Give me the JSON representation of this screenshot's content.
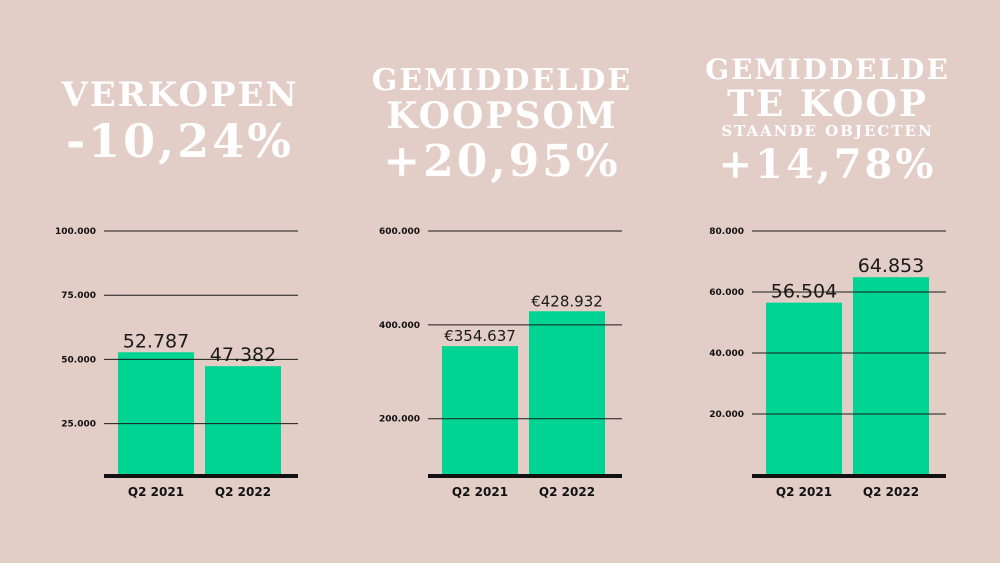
{
  "colors": {
    "background": "#e3cdc7",
    "bar": "#00d492",
    "text": "#ffffff",
    "axis": "#111111"
  },
  "headlines": [
    {
      "lines": [
        "VERKOPEN",
        "-10,24%"
      ]
    },
    {
      "lines": [
        "GEMIDDELDE",
        "KOOPSOM",
        "+20,95%"
      ]
    },
    {
      "lines": [
        "GEMIDDELDE",
        "TE KOOP",
        "STAANDE OBJECTEN",
        "+14,78%"
      ]
    }
  ],
  "chart_data": [
    {
      "type": "bar",
      "categories": [
        "Q2 2021",
        "Q2 2022"
      ],
      "values": [
        52787,
        47382
      ],
      "data_labels": [
        "52.787",
        "47.382"
      ],
      "yticks": [
        25000,
        50000,
        75000,
        100000
      ],
      "ytick_labels": [
        "25.000",
        "50.000",
        "75.000",
        "100.000"
      ],
      "ylim": [
        5000,
        100000
      ],
      "grid": true
    },
    {
      "type": "bar",
      "categories": [
        "Q2 2021",
        "Q2 2022"
      ],
      "values": [
        354637,
        428932
      ],
      "data_labels": [
        "€354.637",
        "€428.932"
      ],
      "yticks": [
        200000,
        400000,
        600000
      ],
      "ytick_labels": [
        "200.000",
        "400.000",
        "600.000"
      ],
      "ylim": [
        80000,
        600000
      ],
      "grid": true
    },
    {
      "type": "bar",
      "categories": [
        "Q2 2021",
        "Q2 2022"
      ],
      "values": [
        56504,
        64853
      ],
      "data_labels": [
        "56.504",
        "64.853"
      ],
      "yticks": [
        20000,
        40000,
        60000,
        80000
      ],
      "ytick_labels": [
        "20.000",
        "40.000",
        "60.000",
        "80.000"
      ],
      "ylim": [
        0,
        80000
      ],
      "grid": true
    }
  ]
}
